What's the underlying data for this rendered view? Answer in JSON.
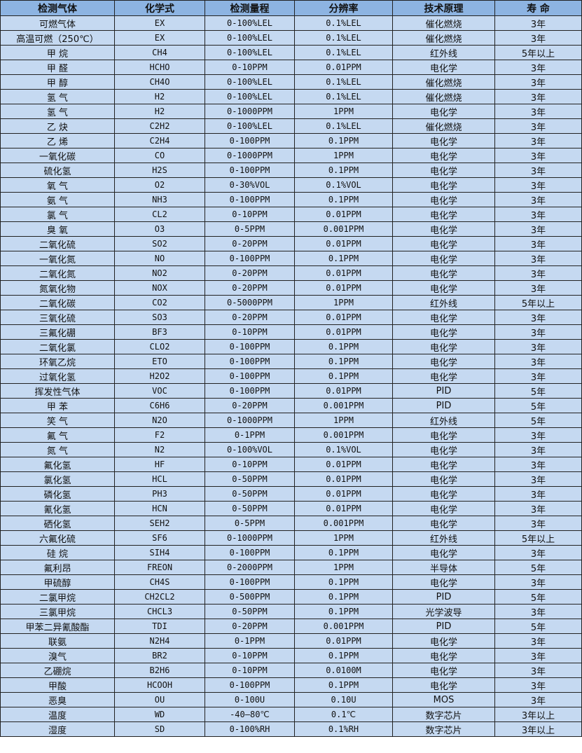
{
  "headers": [
    "检测气体",
    "化学式",
    "检测量程",
    "分辨率",
    "技术原理",
    "寿 命"
  ],
  "rows": [
    [
      "可燃气体",
      "EX",
      "0-100%LEL",
      "0.1%LEL",
      "催化燃烧",
      "3年"
    ],
    [
      "高温可燃（250℃）",
      "EX",
      "0-100%LEL",
      "0.1%LEL",
      "催化燃烧",
      "3年"
    ],
    [
      "甲 烷",
      "CH4",
      "0-100%LEL",
      "0.1%LEL",
      "红外线",
      "5年以上"
    ],
    [
      "甲 醛",
      "HCHO",
      "0-10PPM",
      "0.01PPM",
      "电化学",
      "3年"
    ],
    [
      "甲 醇",
      "CH4O",
      "0-100%LEL",
      "0.1%LEL",
      "催化燃烧",
      "3年"
    ],
    [
      "氢 气",
      "H2",
      "0-100%LEL",
      "0.1%LEL",
      "催化燃烧",
      "3年"
    ],
    [
      "氢 气",
      "H2",
      "0-1000PPM",
      "1PPM",
      "电化学",
      "3年"
    ],
    [
      "乙 炔",
      "C2H2",
      "0-100%LEL",
      "0.1%LEL",
      "催化燃烧",
      "3年"
    ],
    [
      "乙 烯",
      "C2H4",
      "0-100PPM",
      "0.1PPM",
      "电化学",
      "3年"
    ],
    [
      "一氧化碳",
      "CO",
      "0-1000PPM",
      "1PPM",
      "电化学",
      "3年"
    ],
    [
      "硫化氢",
      "H2S",
      "0-100PPM",
      "0.1PPM",
      "电化学",
      "3年"
    ],
    [
      "氧 气",
      "O2",
      "0-30%VOL",
      "0.1%VOL",
      "电化学",
      "3年"
    ],
    [
      "氨 气",
      "NH3",
      "0-100PPM",
      "0.1PPM",
      "电化学",
      "3年"
    ],
    [
      "氯 气",
      "CL2",
      "0-10PPM",
      "0.01PPM",
      "电化学",
      "3年"
    ],
    [
      "臭 氧",
      "O3",
      "0-5PPM",
      "0.001PPM",
      "电化学",
      "3年"
    ],
    [
      "二氧化硫",
      "SO2",
      "0-20PPM",
      "0.01PPM",
      "电化学",
      "3年"
    ],
    [
      "一氧化氮",
      "NO",
      "0-100PPM",
      "0.1PPM",
      "电化学",
      "3年"
    ],
    [
      "二氧化氮",
      "NO2",
      "0-20PPM",
      "0.01PPM",
      "电化学",
      "3年"
    ],
    [
      "氮氧化物",
      "NOX",
      "0-20PPM",
      "0.01PPM",
      "电化学",
      "3年"
    ],
    [
      "二氧化碳",
      "CO2",
      "0-5000PPM",
      "1PPM",
      "红外线",
      "5年以上"
    ],
    [
      "三氧化硫",
      "SO3",
      "0-20PPM",
      "0.01PPM",
      "电化学",
      "3年"
    ],
    [
      "三氟化硼",
      "BF3",
      "0-10PPM",
      "0.01PPM",
      "电化学",
      "3年"
    ],
    [
      "二氧化氯",
      "CLO2",
      "0-100PPM",
      "0.1PPM",
      "电化学",
      "3年"
    ],
    [
      "环氧乙烷",
      "ETO",
      "0-100PPM",
      "0.1PPM",
      "电化学",
      "3年"
    ],
    [
      "过氧化氢",
      "H2O2",
      "0-100PPM",
      "0.1PPM",
      "电化学",
      "3年"
    ],
    [
      "挥发性气体",
      "VOC",
      "0-100PPM",
      "0.01PPM",
      "PID",
      "5年"
    ],
    [
      "甲 苯",
      "C6H6",
      "0-20PPM",
      "0.001PPM",
      "PID",
      "5年"
    ],
    [
      "笑 气",
      "N2O",
      "0-1000PPM",
      "1PPM",
      "红外线",
      "5年"
    ],
    [
      "氟 气",
      "F2",
      "0-1PPM",
      "0.001PPM",
      "电化学",
      "3年"
    ],
    [
      "氮 气",
      "N2",
      "0-100%VOL",
      "0.1%VOL",
      "电化学",
      "3年"
    ],
    [
      "氟化氢",
      "HF",
      "0-10PPM",
      "0.01PPM",
      "电化学",
      "3年"
    ],
    [
      "氯化氢",
      "HCL",
      "0-50PPM",
      "0.01PPM",
      "电化学",
      "3年"
    ],
    [
      "磷化氢",
      "PH3",
      "0-50PPM",
      "0.01PPM",
      "电化学",
      "3年"
    ],
    [
      "氰化氢",
      "HCN",
      "0-50PPM",
      "0.01PPM",
      "电化学",
      "3年"
    ],
    [
      "硒化氢",
      "SEH2",
      "0-5PPM",
      "0.001PPM",
      "电化学",
      "3年"
    ],
    [
      "六氟化硫",
      "SF6",
      "0-1000PPM",
      "1PPM",
      "红外线",
      "5年以上"
    ],
    [
      "硅 烷",
      "SIH4",
      "0-100PPM",
      "0.1PPM",
      "电化学",
      "3年"
    ],
    [
      "氟利昂",
      "FREON",
      "0-2000PPM",
      "1PPM",
      "半导体",
      "5年"
    ],
    [
      "甲硫醇",
      "CH4S",
      "0-100PPM",
      "0.1PPM",
      "电化学",
      "3年"
    ],
    [
      "二氯甲烷",
      "CH2CL2",
      "0-500PPM",
      "0.1PPM",
      "PID",
      "5年"
    ],
    [
      "三氯甲烷",
      "CHCL3",
      "0-50PPM",
      "0.1PPM",
      "光学波导",
      "3年"
    ],
    [
      "甲苯二异氰酸酯",
      "TDI",
      "0-20PPM",
      "0.001PPM",
      "PID",
      "5年"
    ],
    [
      "联氨",
      "N2H4",
      "0-1PPM",
      "0.01PPM",
      "电化学",
      "3年"
    ],
    [
      "溴气",
      "BR2",
      "0-10PPM",
      "0.1PPM",
      "电化学",
      "3年"
    ],
    [
      "乙硼烷",
      "B2H6",
      "0-10PPM",
      "0.0100M",
      "电化学",
      "3年"
    ],
    [
      "甲酸",
      "HCOOH",
      "0-100PPM",
      "0.1PPM",
      "电化学",
      "3年"
    ],
    [
      "恶臭",
      "OU",
      "0-100U",
      "0.10U",
      "MOS",
      "3年"
    ],
    [
      "温度",
      "WD",
      "-40—80℃",
      "0.1℃",
      "数字芯片",
      "3年以上"
    ],
    [
      "湿度",
      "SD",
      "0-100%RH",
      "0.1%RH",
      "数字芯片",
      "3年以上"
    ]
  ]
}
